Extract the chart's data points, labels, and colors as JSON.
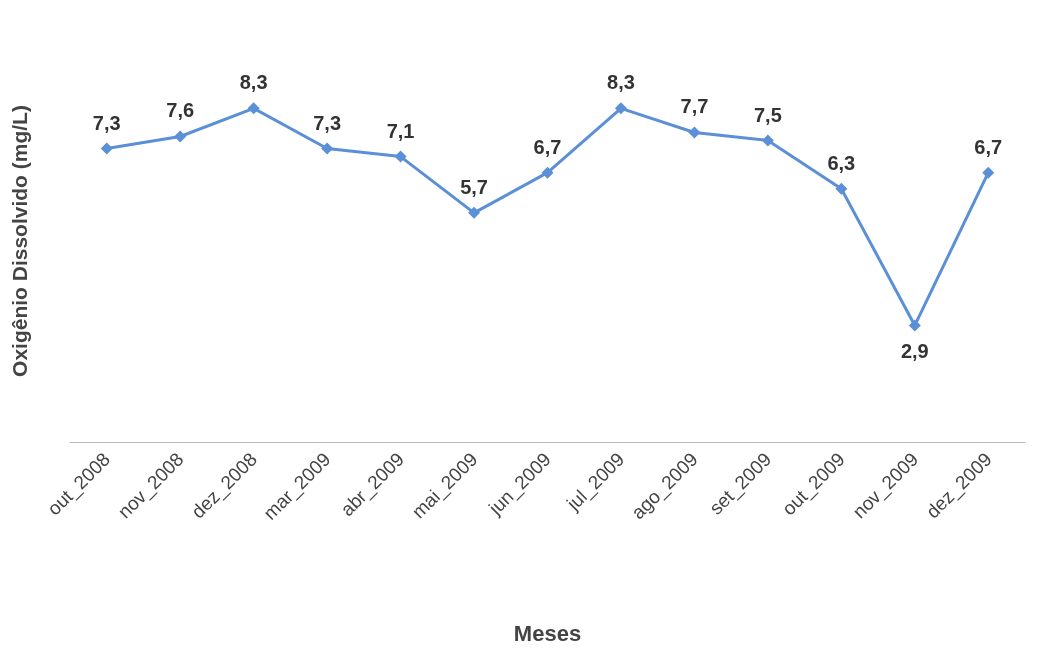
{
  "chart_data": {
    "type": "line",
    "xlabel": "Meses",
    "ylabel": "Oxigênio Dissolvido (mg/L)",
    "categories": [
      "out_2008",
      "nov_2008",
      "dez_2008",
      "mar_2009",
      "abr_2009",
      "mai_2009",
      "jun_2009",
      "jul_2009",
      "ago_2009",
      "set_2009",
      "out_2009",
      "nov_2009",
      "dez_2009"
    ],
    "series": [
      {
        "color": "#5b8fd6",
        "values": [
          7.3,
          7.6,
          8.3,
          7.3,
          7.1,
          5.7,
          6.7,
          8.3,
          7.7,
          7.5,
          6.3,
          2.9,
          6.7
        ],
        "value_labels": [
          "7,3",
          "7,6",
          "8,3",
          "7,3",
          "7,1",
          "5,7",
          "6,7",
          "8,3",
          "7,7",
          "7,5",
          "6,3",
          "2,9",
          "6,7"
        ]
      }
    ],
    "marker": "diamond",
    "grid": false,
    "tick_labels": "x"
  }
}
